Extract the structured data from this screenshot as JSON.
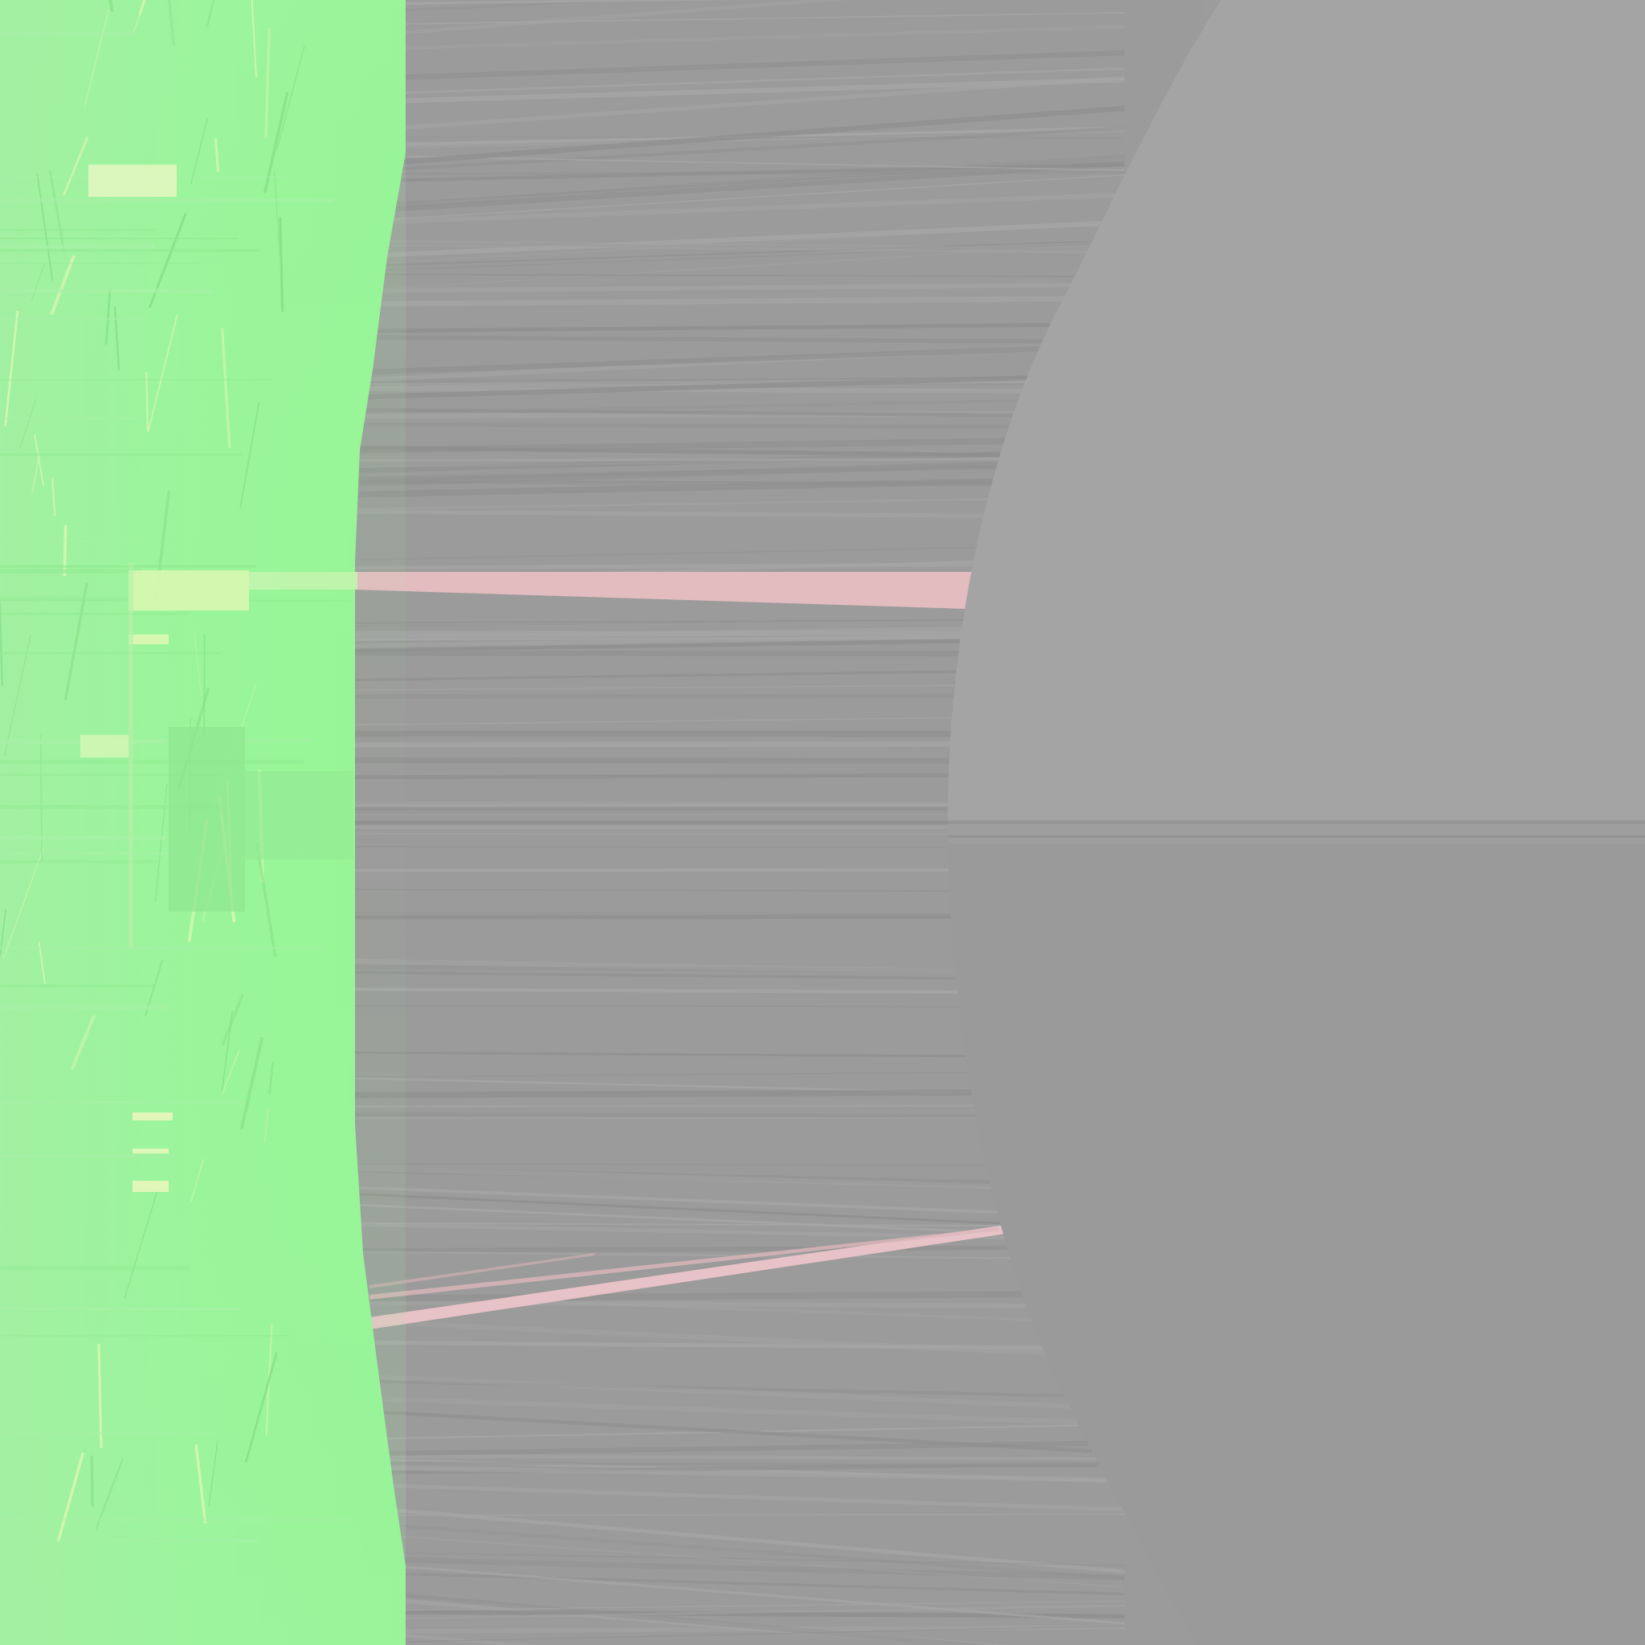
{
  "scene": {
    "description_free": true,
    "colors": {
      "grass_green": "#9af59a",
      "grass_highlight": "#d8f7b0",
      "grass_dark": "#86e086",
      "wall_gray": "#9b9b9b",
      "wall_stripe_light": "#a6a6a6",
      "wall_stripe_dark": "#8f8f8f",
      "right_panel_upper": "#a4a4a4",
      "right_panel_lower": "#9a9a9a",
      "seam_line": "#969696",
      "pink_streak": "#e3bcc0"
    },
    "icons": {
      "grass": "grass-texture",
      "wall": "stretched-wall-texture",
      "arch": "curved-arch-surface"
    }
  }
}
